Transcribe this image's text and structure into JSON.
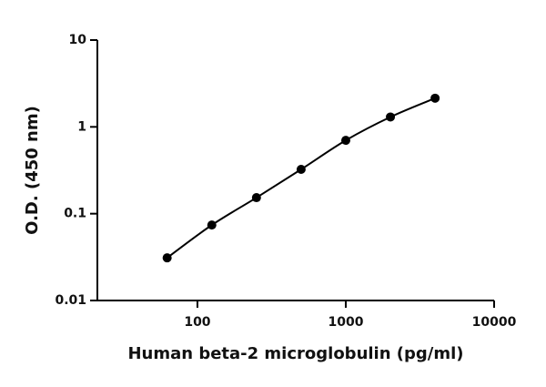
{
  "chart_data": {
    "type": "scatter",
    "x_label": "Human beta-2 microglobulin (pg/ml)",
    "y_label": "O.D. (450 nm)",
    "x": [
      62.5,
      125,
      250,
      500,
      1000,
      2000,
      4000
    ],
    "series": [
      {
        "color": "#000000",
        "values": [
          0.031,
          0.074,
          0.153,
          0.324,
          0.7,
          1.3,
          2.14
        ]
      }
    ],
    "xlim": [
      20,
      10000
    ],
    "xticks": [
      100,
      1000,
      10000
    ],
    "ylim": [
      0.01,
      10
    ],
    "yticks": [
      0.01,
      0.1,
      1,
      10
    ],
    "xscale": "log",
    "yscale": "log",
    "fit_line": true
  }
}
